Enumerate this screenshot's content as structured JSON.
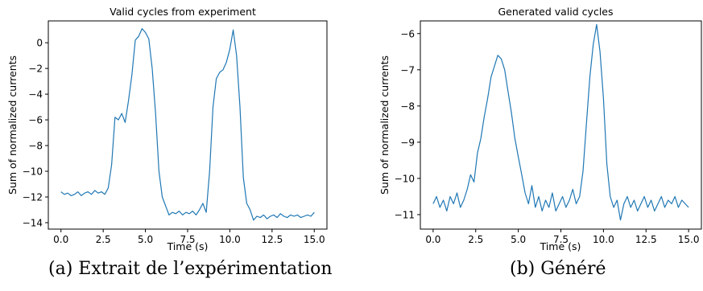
{
  "chart_data": [
    {
      "type": "line",
      "title": "Valid cycles from experiment",
      "xlabel": "Time (s)",
      "ylabel": "Sum of normalized currents",
      "xlim": [
        -0.75,
        15.75
      ],
      "ylim": [
        -14.5,
        1.7
      ],
      "xticks": [
        0.0,
        2.5,
        5.0,
        7.5,
        10.0,
        12.5,
        15.0
      ],
      "xtick_labels": [
        "0.0",
        "2.5",
        "5.0",
        "7.5",
        "10.0",
        "12.5",
        "15.0"
      ],
      "yticks": [
        0,
        -2,
        -4,
        -6,
        -8,
        -10,
        -12,
        -14
      ],
      "ytick_labels": [
        "0",
        "−2",
        "−4",
        "−6",
        "−8",
        "−10",
        "−12",
        "−14"
      ],
      "grid": false,
      "color": "#1f77b4",
      "series": [
        {
          "x": [
            0.0,
            0.2,
            0.4,
            0.6,
            0.8,
            1.0,
            1.2,
            1.4,
            1.6,
            1.8,
            2.0,
            2.2,
            2.4,
            2.6,
            2.8,
            3.0,
            3.2,
            3.4,
            3.6,
            3.8,
            4.0,
            4.2,
            4.4,
            4.6,
            4.8,
            5.0,
            5.2,
            5.4,
            5.6,
            5.8,
            6.0,
            6.2,
            6.4,
            6.6,
            6.8,
            7.0,
            7.2,
            7.4,
            7.6,
            7.8,
            8.0,
            8.2,
            8.4,
            8.6,
            8.8,
            9.0,
            9.2,
            9.4,
            9.6,
            9.8,
            10.0,
            10.2,
            10.4,
            10.6,
            10.8,
            11.0,
            11.2,
            11.4,
            11.6,
            11.8,
            12.0,
            12.2,
            12.4,
            12.6,
            12.8,
            13.0,
            13.2,
            13.4,
            13.6,
            13.8,
            14.0,
            14.2,
            14.4,
            14.6,
            14.8,
            15.0
          ],
          "y": [
            -11.6,
            -11.8,
            -11.7,
            -11.9,
            -11.8,
            -11.6,
            -11.9,
            -11.7,
            -11.6,
            -11.8,
            -11.5,
            -11.7,
            -11.6,
            -11.8,
            -11.3,
            -9.5,
            -5.8,
            -6.0,
            -5.5,
            -6.2,
            -4.5,
            -2.5,
            0.2,
            0.5,
            1.1,
            0.8,
            0.3,
            -2.0,
            -5.5,
            -10.0,
            -12.0,
            -12.7,
            -13.4,
            -13.2,
            -13.3,
            -13.1,
            -13.4,
            -13.2,
            -13.3,
            -13.1,
            -13.4,
            -13.0,
            -12.5,
            -13.2,
            -10.0,
            -5.0,
            -2.8,
            -2.3,
            -2.1,
            -1.5,
            -0.5,
            1.0,
            -1.0,
            -5.0,
            -10.5,
            -12.5,
            -13.0,
            -13.8,
            -13.5,
            -13.6,
            -13.4,
            -13.7,
            -13.5,
            -13.4,
            -13.6,
            -13.3,
            -13.5,
            -13.6,
            -13.4,
            -13.5,
            -13.4,
            -13.6,
            -13.5,
            -13.4,
            -13.5,
            -13.2
          ]
        }
      ]
    },
    {
      "type": "line",
      "title": "Generated valid cycles",
      "xlabel": "Time (s)",
      "ylabel": "Sum of normalized currents",
      "xlim": [
        -0.75,
        15.75
      ],
      "ylim": [
        -11.4,
        -5.65
      ],
      "xticks": [
        0.0,
        2.5,
        5.0,
        7.5,
        10.0,
        12.5,
        15.0
      ],
      "xtick_labels": [
        "0.0",
        "2.5",
        "5.0",
        "7.5",
        "10.0",
        "12.5",
        "15.0"
      ],
      "yticks": [
        -6,
        -7,
        -8,
        -9,
        -10,
        -11
      ],
      "ytick_labels": [
        "−6",
        "−7",
        "−8",
        "−9",
        "−10",
        "−11"
      ],
      "grid": false,
      "color": "#1f77b4",
      "series": [
        {
          "x": [
            0.0,
            0.2,
            0.4,
            0.6,
            0.8,
            1.0,
            1.2,
            1.4,
            1.6,
            1.8,
            2.0,
            2.2,
            2.4,
            2.6,
            2.8,
            3.0,
            3.2,
            3.4,
            3.6,
            3.8,
            4.0,
            4.2,
            4.4,
            4.6,
            4.8,
            5.0,
            5.2,
            5.4,
            5.6,
            5.8,
            6.0,
            6.2,
            6.4,
            6.6,
            6.8,
            7.0,
            7.2,
            7.4,
            7.6,
            7.8,
            8.0,
            8.2,
            8.4,
            8.6,
            8.8,
            9.0,
            9.2,
            9.4,
            9.6,
            9.8,
            10.0,
            10.2,
            10.4,
            10.6,
            10.8,
            11.0,
            11.2,
            11.4,
            11.6,
            11.8,
            12.0,
            12.2,
            12.4,
            12.6,
            12.8,
            13.0,
            13.2,
            13.4,
            13.6,
            13.8,
            14.0,
            14.2,
            14.4,
            14.6,
            14.8,
            15.0
          ],
          "y": [
            -10.7,
            -10.5,
            -10.8,
            -10.6,
            -10.9,
            -10.5,
            -10.7,
            -10.4,
            -10.8,
            -10.6,
            -10.3,
            -9.9,
            -10.1,
            -9.3,
            -8.9,
            -8.3,
            -7.8,
            -7.2,
            -6.9,
            -6.6,
            -6.7,
            -7.0,
            -7.6,
            -8.2,
            -8.9,
            -9.4,
            -9.9,
            -10.4,
            -10.7,
            -10.2,
            -10.8,
            -10.5,
            -10.9,
            -10.6,
            -10.8,
            -10.4,
            -10.9,
            -10.7,
            -10.5,
            -10.8,
            -10.6,
            -10.3,
            -10.7,
            -10.5,
            -9.8,
            -8.5,
            -7.2,
            -6.3,
            -5.75,
            -6.5,
            -7.8,
            -9.6,
            -10.5,
            -10.8,
            -10.6,
            -11.15,
            -10.7,
            -10.5,
            -10.8,
            -10.6,
            -10.9,
            -10.7,
            -10.5,
            -10.8,
            -10.6,
            -10.9,
            -10.7,
            -10.5,
            -10.8,
            -10.6,
            -10.7,
            -10.5,
            -10.8,
            -10.6,
            -10.7,
            -10.8
          ]
        }
      ]
    }
  ],
  "captions": {
    "a": "(a) Extrait de l’expérimentation",
    "b": "(b) Généré"
  }
}
